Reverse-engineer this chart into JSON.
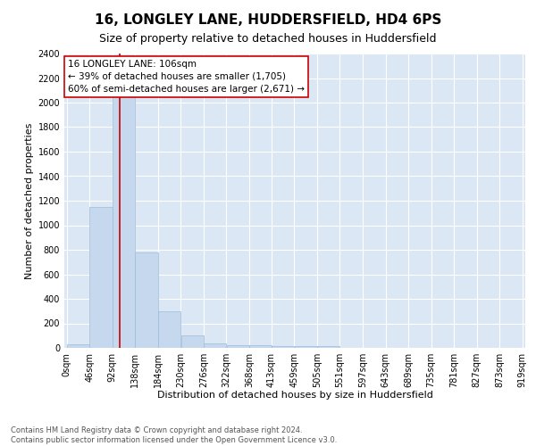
{
  "title1": "16, LONGLEY LANE, HUDDERSFIELD, HD4 6PS",
  "title2": "Size of property relative to detached houses in Huddersfield",
  "xlabel": "Distribution of detached houses by size in Huddersfield",
  "ylabel": "Number of detached properties",
  "footnote1": "Contains HM Land Registry data © Crown copyright and database right 2024.",
  "footnote2": "Contains public sector information licensed under the Open Government Licence v3.0.",
  "bin_edges": [
    0,
    46,
    92,
    138,
    184,
    230,
    276,
    322,
    368,
    413,
    459,
    505,
    551,
    597,
    643,
    689,
    735,
    781,
    827,
    873,
    919
  ],
  "bin_counts": [
    30,
    1150,
    2200,
    775,
    295,
    100,
    40,
    25,
    20,
    15,
    15,
    15,
    0,
    0,
    0,
    0,
    0,
    0,
    0,
    0
  ],
  "bar_color": "#c5d8ed",
  "bar_edge_color": "#9bbcd8",
  "property_size": 106,
  "red_line_color": "#cc0000",
  "annotation_line1": "16 LONGLEY LANE: 106sqm",
  "annotation_line2": "← 39% of detached houses are smaller (1,705)",
  "annotation_line3": "60% of semi-detached houses are larger (2,671) →",
  "annotation_box_color": "#cc0000",
  "ylim": [
    0,
    2400
  ],
  "yticks": [
    0,
    200,
    400,
    600,
    800,
    1000,
    1200,
    1400,
    1600,
    1800,
    2000,
    2200,
    2400
  ],
  "plot_bg_color": "#dce7f5",
  "grid_color": "#ffffff",
  "fig_bg_color": "#ffffff",
  "title1_fontsize": 11,
  "title2_fontsize": 9,
  "xlabel_fontsize": 8,
  "ylabel_fontsize": 8,
  "tick_fontsize": 7,
  "annotation_fontsize": 7.5,
  "footnote_fontsize": 6
}
